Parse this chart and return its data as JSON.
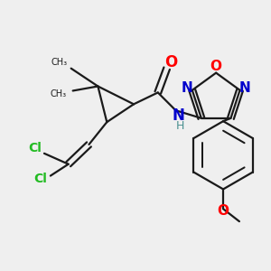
{
  "background_color": "#efefef",
  "bond_color": "#1a1a1a",
  "bond_width": 1.6,
  "fig_size": [
    3.0,
    3.0
  ],
  "dpi": 100,
  "colors": {
    "O": "#ff0000",
    "N": "#0000cc",
    "H": "#4a9090",
    "Cl": "#22bb22",
    "C": "#1a1a1a"
  }
}
